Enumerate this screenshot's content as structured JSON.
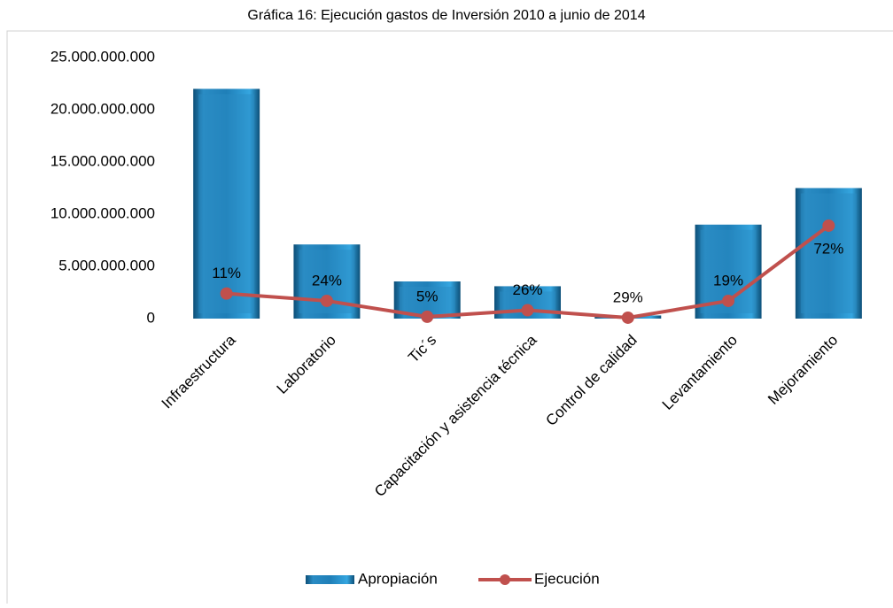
{
  "chart_data": {
    "type": "bar_line",
    "title": "Gráfica 16: Ejecución gastos de Inversión 2010 a junio de 2014",
    "categories": [
      "Infraestructura",
      "Laboratorio",
      "Tic´s",
      "Capacitación  y asistencia técnica",
      "Control de calidad",
      "Levantamiento",
      "Mejoramiento"
    ],
    "series": [
      {
        "name": "Apropiación",
        "type": "bar",
        "color": "#2a8cc4",
        "values": [
          22000000000,
          7100000000,
          3560000000,
          3100000000,
          300000000,
          9000000000,
          12500000000
        ]
      },
      {
        "name": "Ejecución",
        "type": "line",
        "color": "#c0504d",
        "values": [
          2400000000,
          1700000000,
          180000000,
          800000000,
          90000000,
          1700000000,
          8900000000
        ],
        "data_labels": [
          "11%",
          "24%",
          "5%",
          "26%",
          "29%",
          "19%",
          "72%"
        ]
      }
    ],
    "ylim": [
      0,
      25000000000
    ],
    "yticks": [
      0,
      {
        "value": 5000000000,
        "label": "5.000.000.000"
      },
      {
        "value": 10000000000,
        "label": "10.000.000.000"
      },
      {
        "value": 15000000000,
        "label": "15.000.000.000"
      },
      {
        "value": 20000000000,
        "label": "20.000.000.000"
      },
      {
        "value": 25000000000,
        "label": "25.000.000.000"
      }
    ],
    "legend": "bottom"
  }
}
